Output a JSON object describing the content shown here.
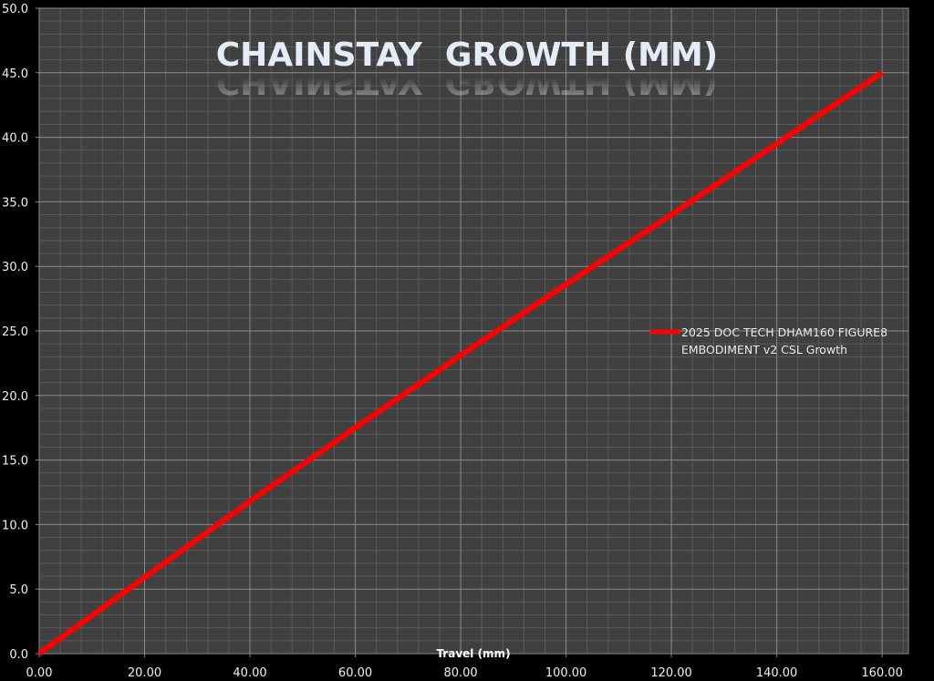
{
  "chart_data": {
    "type": "line",
    "title": "CHAINSTAY  GROWTH (MM)",
    "xlabel": "Travel (mm)",
    "ylabel": "",
    "xlim": [
      0,
      165
    ],
    "ylim": [
      0,
      50
    ],
    "x_ticks": [
      0,
      20,
      40,
      60,
      80,
      100,
      120,
      140,
      160
    ],
    "x_tick_labels": [
      "0.00",
      "20.00",
      "40.00",
      "60.00",
      "80.00",
      "100.00",
      "120.00",
      "140.00",
      "160.00"
    ],
    "y_ticks": [
      0,
      5,
      10,
      15,
      20,
      25,
      30,
      35,
      40,
      45,
      50
    ],
    "y_tick_labels": [
      "0.0",
      "5.0",
      "10.0",
      "15.0",
      "20.0",
      "25.0",
      "30.0",
      "35.0",
      "40.0",
      "45.0",
      "50.0"
    ],
    "grid": true,
    "legend_position": "right",
    "series": [
      {
        "name": "2025 DOC TECH DHAM160 FIGURE8 EMBODIMENT v2 CSL Growth",
        "legend_lines": [
          "2025 DOC TECH DHAM160 FIGURE8",
          "EMBODIMENT v2 CSL Growth"
        ],
        "color": "#ff0000",
        "x": [
          0,
          20,
          40,
          60,
          80,
          100,
          120,
          140,
          160
        ],
        "y": [
          0,
          5.9,
          11.8,
          17.5,
          23.1,
          28.6,
          34.0,
          39.5,
          45.0
        ]
      }
    ],
    "colors": {
      "plot_bg": "#404040",
      "major_grid": "#8a8a8a",
      "minor_grid": "#5a5a5a",
      "page_bg": "#000000"
    }
  }
}
